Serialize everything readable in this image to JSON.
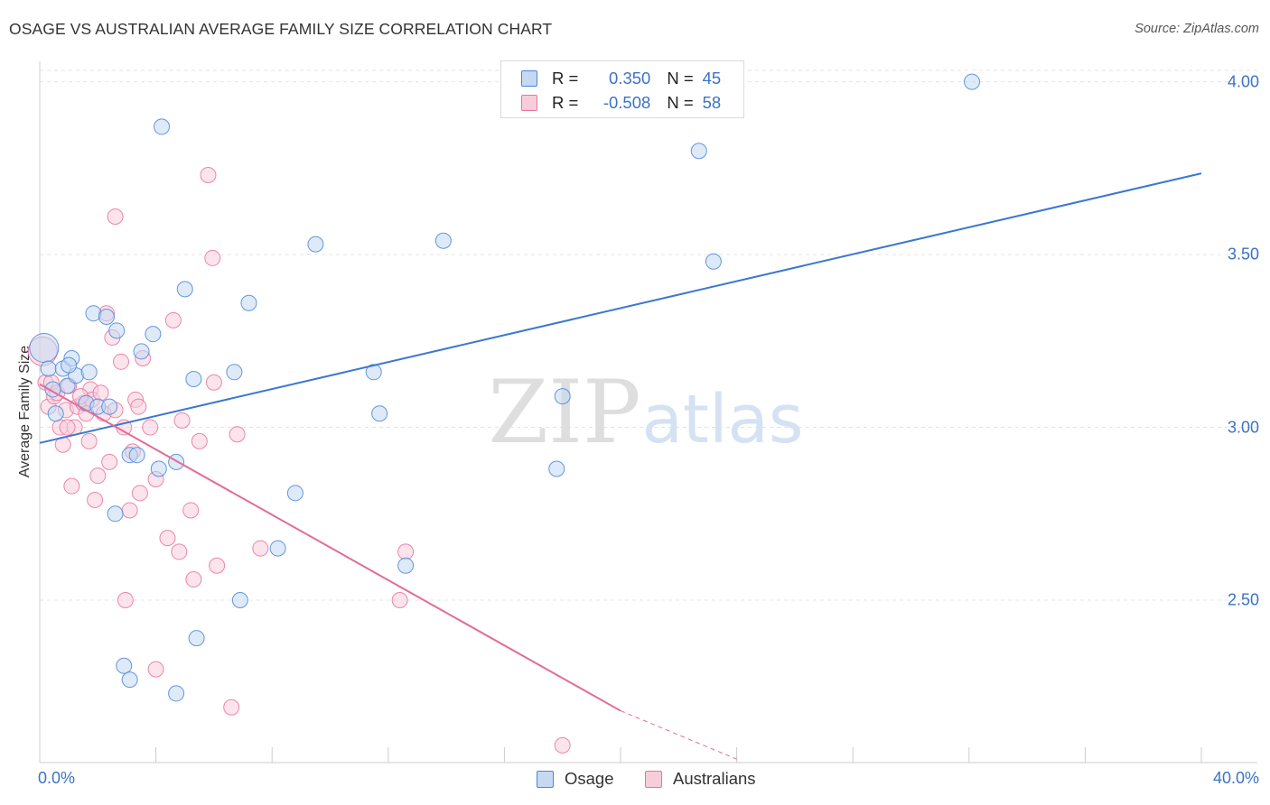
{
  "header": {
    "title": "OSAGE VS AUSTRALIAN AVERAGE FAMILY SIZE CORRELATION CHART",
    "source": "Source: ZipAtlas.com"
  },
  "watermark": {
    "zip": "ZIP",
    "atlas": "atlas"
  },
  "legend": {
    "r_label": "R =",
    "n_label": "N =",
    "rows": [
      {
        "name": "Osage",
        "r": "0.350",
        "n": "45"
      },
      {
        "name": "Australians",
        "r": "-0.508",
        "n": "58"
      }
    ]
  },
  "chart_data": {
    "type": "scatter",
    "title": "OSAGE VS AUSTRALIAN AVERAGE FAMILY SIZE CORRELATION CHART",
    "xlabel": "",
    "ylabel": "Average Family Size",
    "xlim": [
      0,
      40
    ],
    "ylim": [
      2.03,
      4.08
    ],
    "x_tick_labels": [
      "0.0%",
      "40.0%"
    ],
    "y_ticks": [
      2.5,
      3.0,
      3.5,
      4.0
    ],
    "y_tick_labels": [
      "2.50",
      "3.00",
      "3.50",
      "4.00"
    ],
    "grid": true,
    "colors": {
      "osage": "#4a86d8",
      "australians": "#e8739f"
    },
    "series": [
      {
        "name": "Osage",
        "r": 0.35,
        "n": 45,
        "trend": {
          "x": [
            0,
            40
          ],
          "y": [
            2.955,
            3.735
          ]
        },
        "points": [
          [
            0.15,
            3.23
          ],
          [
            0.3,
            3.17
          ],
          [
            0.45,
            3.11
          ],
          [
            0.55,
            3.04
          ],
          [
            0.8,
            3.17
          ],
          [
            0.95,
            3.12
          ],
          [
            1.1,
            3.2
          ],
          [
            1.25,
            3.15
          ],
          [
            1.6,
            3.07
          ],
          [
            1.7,
            3.16
          ],
          [
            1.85,
            3.33
          ],
          [
            2.0,
            3.06
          ],
          [
            2.3,
            3.32
          ],
          [
            2.4,
            3.06
          ],
          [
            2.6,
            2.75
          ],
          [
            2.65,
            3.28
          ],
          [
            2.9,
            2.31
          ],
          [
            3.1,
            2.92
          ],
          [
            3.1,
            2.27
          ],
          [
            3.35,
            2.92
          ],
          [
            3.5,
            3.22
          ],
          [
            3.9,
            3.27
          ],
          [
            4.1,
            2.88
          ],
          [
            4.2,
            3.87
          ],
          [
            4.7,
            2.9
          ],
          [
            4.7,
            2.23
          ],
          [
            5.0,
            3.4
          ],
          [
            5.3,
            3.14
          ],
          [
            5.4,
            2.39
          ],
          [
            6.7,
            3.16
          ],
          [
            6.9,
            2.5
          ],
          [
            7.2,
            3.36
          ],
          [
            8.2,
            2.65
          ],
          [
            8.8,
            2.81
          ],
          [
            9.5,
            3.53
          ],
          [
            11.5,
            3.16
          ],
          [
            11.7,
            3.04
          ],
          [
            12.6,
            2.6
          ],
          [
            13.9,
            3.54
          ],
          [
            17.8,
            2.88
          ],
          [
            18.0,
            3.09
          ],
          [
            22.7,
            3.8
          ],
          [
            23.2,
            3.48
          ],
          [
            32.1,
            4.0
          ],
          [
            1.0,
            3.18
          ]
        ]
      },
      {
        "name": "Australians",
        "r": -0.508,
        "n": 58,
        "trend": {
          "x": [
            0,
            20
          ],
          "y": [
            3.125,
            2.18
          ]
        },
        "trend_dashed": {
          "x": [
            20,
            24
          ],
          "y": [
            2.18,
            2.04
          ]
        },
        "points": [
          [
            0.1,
            3.22
          ],
          [
            0.2,
            3.13
          ],
          [
            0.3,
            3.06
          ],
          [
            0.4,
            3.13
          ],
          [
            0.5,
            3.09
          ],
          [
            0.6,
            3.1
          ],
          [
            0.7,
            3.0
          ],
          [
            0.8,
            2.95
          ],
          [
            0.9,
            3.05
          ],
          [
            1.0,
            3.12
          ],
          [
            1.1,
            2.83
          ],
          [
            1.2,
            3.0
          ],
          [
            1.3,
            3.06
          ],
          [
            1.5,
            3.07
          ],
          [
            1.6,
            3.04
          ],
          [
            1.7,
            2.96
          ],
          [
            1.75,
            3.11
          ],
          [
            1.8,
            3.08
          ],
          [
            1.9,
            2.79
          ],
          [
            2.0,
            2.86
          ],
          [
            2.1,
            3.1
          ],
          [
            2.2,
            3.04
          ],
          [
            2.3,
            3.33
          ],
          [
            2.4,
            2.9
          ],
          [
            2.5,
            3.26
          ],
          [
            2.6,
            3.05
          ],
          [
            2.6,
            3.61
          ],
          [
            2.8,
            3.19
          ],
          [
            2.9,
            3.0
          ],
          [
            2.95,
            2.5
          ],
          [
            3.1,
            2.76
          ],
          [
            3.2,
            2.93
          ],
          [
            3.3,
            3.08
          ],
          [
            3.4,
            3.06
          ],
          [
            3.45,
            2.81
          ],
          [
            3.55,
            3.2
          ],
          [
            3.8,
            3.0
          ],
          [
            4.0,
            2.85
          ],
          [
            4.0,
            2.3
          ],
          [
            4.4,
            2.68
          ],
          [
            4.6,
            3.31
          ],
          [
            4.8,
            2.64
          ],
          [
            4.9,
            3.02
          ],
          [
            5.2,
            2.76
          ],
          [
            5.3,
            2.56
          ],
          [
            5.5,
            2.96
          ],
          [
            5.8,
            3.73
          ],
          [
            5.95,
            3.49
          ],
          [
            6.0,
            3.13
          ],
          [
            6.1,
            2.6
          ],
          [
            6.6,
            2.19
          ],
          [
            6.8,
            2.98
          ],
          [
            7.6,
            2.65
          ],
          [
            12.4,
            2.5
          ],
          [
            12.6,
            2.64
          ],
          [
            18.0,
            2.08
          ],
          [
            1.4,
            3.09
          ],
          [
            0.95,
            3.0
          ]
        ]
      }
    ]
  }
}
